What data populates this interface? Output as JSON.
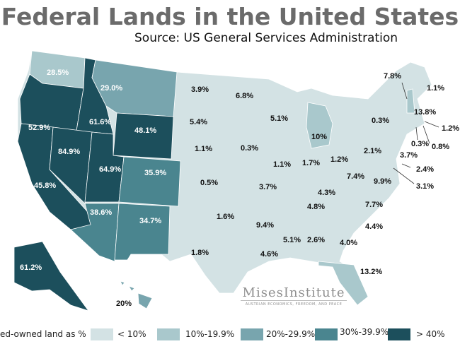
{
  "title": "Federal Lands in the United States",
  "subtitle": "Source: US General Services Administration",
  "colors": {
    "lt10": "#d3e2e4",
    "10to19": "#a9c8cc",
    "20to29": "#78a5ae",
    "30to39": "#4a858f",
    "gt40": "#1c4f5c"
  },
  "legend": {
    "title": "ed-owned land as %",
    "items": [
      "< 10%",
      "10%-19.9%",
      "20%-29.9%",
      "30%-39.9%",
      "> 40%"
    ]
  },
  "labels": [
    "28.5%",
    "29.0%",
    "52.9%",
    "61.6%",
    "48.1%",
    "84.9%",
    "64.9%",
    "35.9%",
    "45.8%",
    "38.6%",
    "34.7%",
    "61.2%",
    "20%",
    "3.9%",
    "6.8%",
    "5.4%",
    "5.1%",
    "1.1%",
    "0.3%",
    "10%",
    "1.1%",
    "1.7%",
    "1.2%",
    "0.5%",
    "3.7%",
    "1.6%",
    "9.4%",
    "1.8%",
    "4.6%",
    "5.1%",
    "2.6%",
    "4.0%",
    "13.2%",
    "4.3%",
    "4.8%",
    "7.7%",
    "4.4%",
    "7.4%",
    "9.9%",
    "2.1%",
    "0.3%",
    "7.8%",
    "1.1%",
    "13.8%",
    "1.2%",
    "0.3%",
    "0.8%",
    "3.7%",
    "2.4%",
    "3.1%"
  ],
  "logo": {
    "name": "MisesInstitute",
    "tagline": "AUSTRIAN ECONOMICS, FREEDOM, AND PEACE"
  }
}
